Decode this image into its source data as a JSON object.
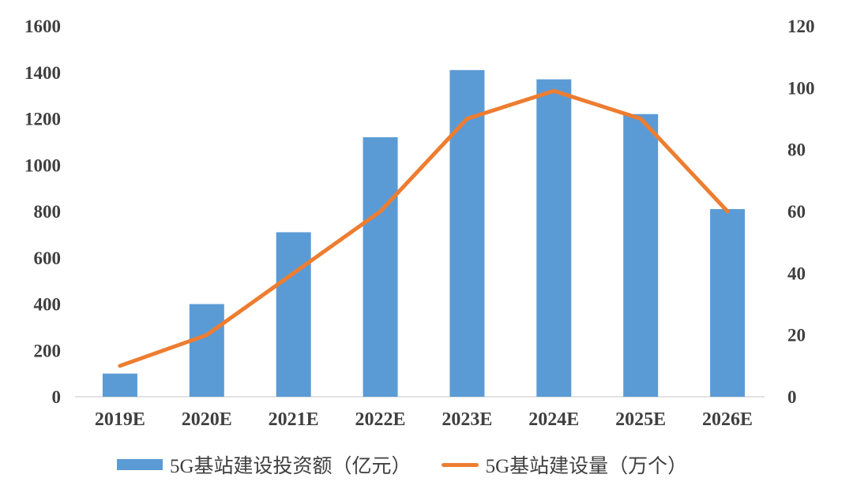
{
  "chart_data": {
    "type": "combo",
    "title": "",
    "categories": [
      "2019E",
      "2020E",
      "2021E",
      "2022E",
      "2023E",
      "2024E",
      "2025E",
      "2026E"
    ],
    "series": [
      {
        "name": "5G基站建设投资额（亿元）",
        "type": "bar",
        "axis": "left",
        "color": "#5b9bd5",
        "values": [
          100,
          400,
          710,
          1120,
          1410,
          1370,
          1220,
          810
        ]
      },
      {
        "name": "5G基站建设量（万个）",
        "type": "line",
        "axis": "right",
        "color": "#ed7d31",
        "values": [
          10,
          20,
          40,
          60,
          90,
          99,
          90,
          60
        ]
      }
    ],
    "left_axis": {
      "min": 0,
      "max": 1600,
      "tick_step": 200,
      "tick_labels": [
        "0",
        "200",
        "400",
        "600",
        "800",
        "1000",
        "1200",
        "1400",
        "1600"
      ]
    },
    "right_axis": {
      "min": 0,
      "max": 120,
      "tick_step": 20,
      "tick_labels": [
        "0",
        "20",
        "40",
        "60",
        "80",
        "100",
        "120"
      ]
    },
    "grid": false,
    "legend_position": "bottom",
    "background": "#ffffff",
    "text_color": "#3f3f3f",
    "baseline_color": "#d9d9d9"
  }
}
